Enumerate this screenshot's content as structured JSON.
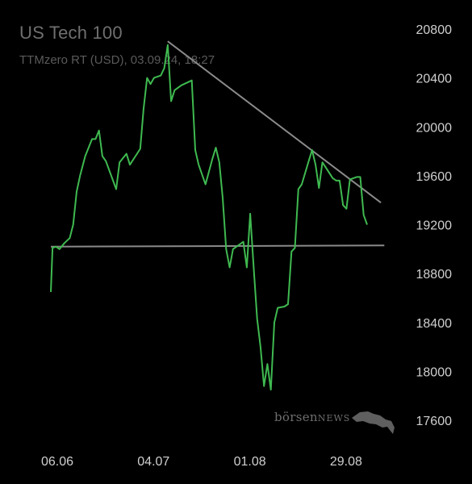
{
  "chart_data": {
    "type": "line",
    "title": "US Tech 100",
    "subtitle": "TTMzero RT (USD), 03.09.24, 18:27",
    "xlabel": "",
    "ylabel": "",
    "ylim": [
      17500,
      20900
    ],
    "y_ticks": [
      20800,
      20400,
      20000,
      19600,
      19200,
      18800,
      18400,
      18000,
      17600
    ],
    "x_ticks": [
      {
        "label": "06.06",
        "day": 0
      },
      {
        "label": "04.07",
        "day": 28
      },
      {
        "label": "01.08",
        "day": 56
      },
      {
        "label": "29.08",
        "day": 84
      }
    ],
    "x_range": [
      -4,
      97
    ],
    "grid": false,
    "legend": "none",
    "colors": {
      "line": "#3fb950",
      "trendline": "#8a8a8a",
      "axis_text": "#cfcfcf",
      "title": "#6f6f6f"
    },
    "series": [
      {
        "name": "",
        "points": [
          [
            0,
            18650
          ],
          [
            0.5,
            19010
          ],
          [
            1.5,
            19020
          ],
          [
            2.5,
            19000
          ],
          [
            4,
            19050
          ],
          [
            5.5,
            19090
          ],
          [
            6.5,
            19200
          ],
          [
            7.5,
            19470
          ],
          [
            8.5,
            19600
          ],
          [
            10,
            19760
          ],
          [
            12,
            19900
          ],
          [
            13,
            19900
          ],
          [
            14,
            19970
          ],
          [
            15,
            19760
          ],
          [
            16,
            19720
          ],
          [
            19,
            19490
          ],
          [
            20,
            19710
          ],
          [
            22,
            19780
          ],
          [
            23,
            19690
          ],
          [
            26,
            19820
          ],
          [
            27,
            20150
          ],
          [
            28,
            20400
          ],
          [
            29,
            20350
          ],
          [
            30,
            20400
          ],
          [
            32,
            20420
          ],
          [
            33,
            20480
          ],
          [
            34,
            20670
          ],
          [
            35,
            20210
          ],
          [
            36,
            20300
          ],
          [
            38,
            20340
          ],
          [
            41,
            20380
          ],
          [
            42,
            19810
          ],
          [
            43,
            19690
          ],
          [
            45,
            19530
          ],
          [
            47,
            19740
          ],
          [
            48,
            19830
          ],
          [
            49,
            19710
          ],
          [
            50,
            19420
          ],
          [
            51,
            19000
          ],
          [
            52,
            18850
          ],
          [
            53,
            19000
          ],
          [
            55,
            19040
          ],
          [
            56,
            19060
          ],
          [
            57,
            18850
          ],
          [
            58,
            19290
          ],
          [
            59,
            18850
          ],
          [
            60,
            18430
          ],
          [
            61,
            18200
          ],
          [
            62,
            17880
          ],
          [
            63,
            18060
          ],
          [
            64,
            17850
          ],
          [
            65,
            18400
          ],
          [
            66,
            18520
          ],
          [
            68,
            18530
          ],
          [
            69,
            18550
          ],
          [
            70,
            18980
          ],
          [
            71,
            19010
          ],
          [
            72,
            19490
          ],
          [
            73,
            19530
          ],
          [
            75,
            19720
          ],
          [
            76,
            19810
          ],
          [
            77,
            19690
          ],
          [
            78,
            19500
          ],
          [
            79,
            19710
          ],
          [
            82,
            19580
          ],
          [
            83,
            19560
          ],
          [
            84,
            19560
          ],
          [
            85,
            19360
          ],
          [
            86,
            19330
          ],
          [
            87,
            19570
          ],
          [
            89,
            19590
          ],
          [
            90,
            19590
          ],
          [
            91,
            19280
          ],
          [
            92,
            19200
          ]
        ]
      }
    ],
    "trendlines": [
      {
        "from": [
          0,
          19020
        ],
        "to": [
          97,
          19030
        ]
      },
      {
        "from": [
          34,
          20700
        ],
        "to": [
          96,
          19380
        ]
      }
    ],
    "watermark": {
      "main": "börsen",
      "news": "NEWS",
      "icon": "bull-icon"
    }
  }
}
